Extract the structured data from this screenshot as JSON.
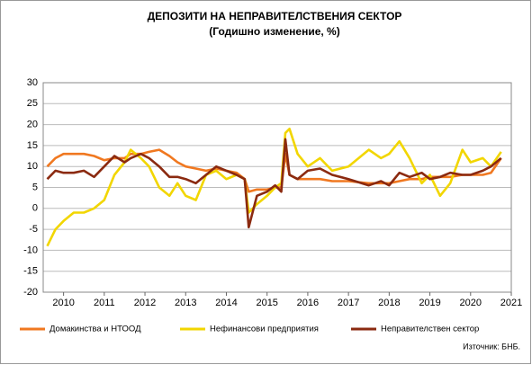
{
  "chart_data": {
    "type": "line",
    "title": "ДЕПОЗИТИ НА НЕПРАВИТЕЛСТВЕНИЯ  СЕКТОР",
    "subtitle": "(Годишно  изменение, %)",
    "source": "Източник: БНБ.",
    "x": [
      2009.6,
      2009.8,
      2010.0,
      2010.25,
      2010.5,
      2010.75,
      2011.0,
      2011.25,
      2011.5,
      2011.65,
      2011.9,
      2012.1,
      2012.35,
      2012.6,
      2012.8,
      2013.0,
      2013.25,
      2013.5,
      2013.75,
      2014.0,
      2014.25,
      2014.45,
      2014.55,
      2014.75,
      2015.0,
      2015.2,
      2015.35,
      2015.45,
      2015.55,
      2015.75,
      2016.0,
      2016.3,
      2016.6,
      2017.0,
      2017.5,
      2017.8,
      2018.0,
      2018.25,
      2018.5,
      2018.8,
      2019.0,
      2019.25,
      2019.5,
      2019.8,
      2020.0,
      2020.3,
      2020.5,
      2020.75
    ],
    "series": [
      {
        "name": "Домакинства  и НТООД",
        "color": "#f07820",
        "values": [
          10,
          12,
          13,
          13,
          13,
          12.5,
          11.5,
          12,
          12,
          13,
          13,
          13.5,
          14,
          12.5,
          11,
          10,
          9.5,
          9,
          9.5,
          9,
          8.5,
          7,
          4,
          4.5,
          4.5,
          5,
          5,
          13,
          8,
          7,
          7,
          7,
          6.5,
          6.5,
          6,
          6,
          6,
          6.5,
          7,
          7,
          7.5,
          7.5,
          7.5,
          8,
          8,
          8,
          8.5,
          12
        ]
      },
      {
        "name": "Нефинансови  предприятия",
        "color": "#f2d600",
        "values": [
          -9,
          -5,
          -3,
          -1,
          -1,
          0,
          2,
          8,
          11,
          14,
          12,
          10,
          5,
          3,
          6,
          3,
          2,
          8,
          9,
          7,
          8,
          7,
          -1,
          1,
          3,
          5,
          6,
          18,
          19,
          13,
          10,
          12,
          9,
          10,
          14,
          12,
          13,
          16,
          12,
          6,
          8,
          3,
          6,
          14,
          11,
          12,
          10,
          13.5
        ]
      },
      {
        "name": "Неправителствен  сектор",
        "color": "#8b2a10",
        "values": [
          7,
          9,
          8.5,
          8.5,
          9,
          7.5,
          10,
          12.5,
          11,
          12,
          13,
          12,
          10,
          7.5,
          7.5,
          7,
          6,
          8,
          10,
          9,
          8,
          7,
          -4.5,
          3,
          4,
          5.5,
          4,
          16.5,
          8,
          7,
          9,
          9.5,
          8,
          7,
          5.5,
          6.5,
          5.5,
          8.5,
          7.5,
          8.5,
          7,
          7.5,
          8.5,
          8,
          8,
          9,
          10,
          12
        ]
      }
    ],
    "xlim": [
      2009.5,
      2021
    ],
    "xticks": [
      2010,
      2011,
      2012,
      2013,
      2014,
      2015,
      2016,
      2017,
      2018,
      2019,
      2020,
      2021
    ],
    "ylim": [
      -20,
      30
    ],
    "yticks": [
      -20,
      -15,
      -10,
      -5,
      0,
      5,
      10,
      15,
      20,
      25,
      30
    ],
    "grid": true
  }
}
